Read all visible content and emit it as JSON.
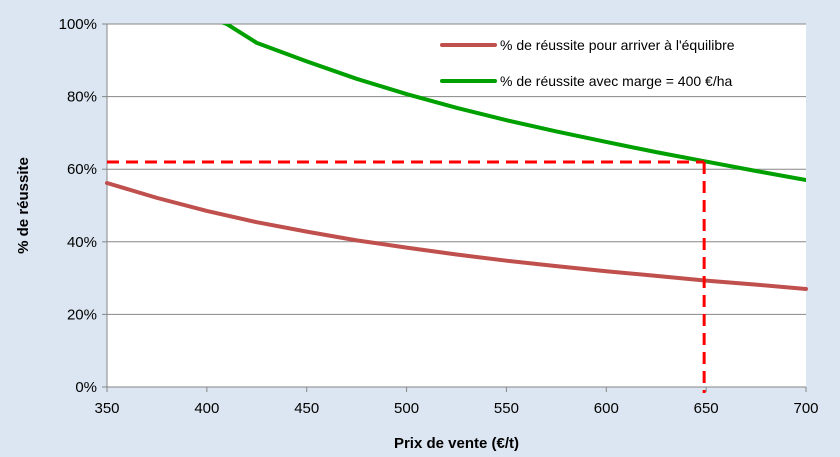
{
  "chart_data": {
    "type": "line",
    "title": "",
    "xlabel": "Prix de vente (€/t)",
    "ylabel": "% de réussite",
    "xlim": [
      350,
      700
    ],
    "ylim": [
      0,
      100
    ],
    "x_ticks": [
      350,
      400,
      450,
      500,
      550,
      600,
      650,
      700
    ],
    "x_tick_labels": [
      "350",
      "400",
      "450",
      "500",
      "550",
      "600",
      "650",
      "700"
    ],
    "y_ticks": [
      0,
      20,
      40,
      60,
      80,
      100
    ],
    "y_tick_labels": [
      "0%",
      "20%",
      "40%",
      "60%",
      "80%",
      "100%"
    ],
    "grid": "horizontal",
    "legend_position": "top-right",
    "x": [
      350,
      375,
      400,
      425,
      450,
      475,
      500,
      525,
      550,
      575,
      600,
      625,
      650,
      675,
      700
    ],
    "series": [
      {
        "name": "% de réussite pour arriver à l'équilibre",
        "color": "#c0504d",
        "values": [
          56.2,
          52.1,
          48.5,
          45.4,
          42.8,
          40.4,
          38.4,
          36.5,
          34.8,
          33.3,
          31.9,
          30.6,
          29.3,
          28.2,
          27.0
        ]
      },
      {
        "name": "% de réussite avec marge = 400 €/ha",
        "color": "#00a000",
        "values": [
          null,
          null,
          null,
          94.8,
          89.7,
          84.9,
          80.7,
          76.9,
          73.5,
          70.4,
          67.5,
          64.7,
          62.1,
          59.5,
          57.0
        ]
      }
    ],
    "green_full_x": [
      405,
      410,
      425,
      450,
      475,
      500,
      525,
      550,
      575,
      600,
      625,
      650,
      675,
      700
    ],
    "green_full_y": [
      101,
      100,
      94.8,
      89.7,
      84.9,
      80.7,
      76.9,
      73.5,
      70.4,
      67.5,
      64.7,
      62.1,
      59.5,
      57.0
    ],
    "annotations": {
      "reference_color": "#ff0000",
      "horizontal_reference": {
        "y": 62,
        "x_from": 350,
        "x_to": 649
      },
      "vertical_reference": {
        "x": 649,
        "y_from": 62,
        "y_to": 0
      }
    }
  }
}
